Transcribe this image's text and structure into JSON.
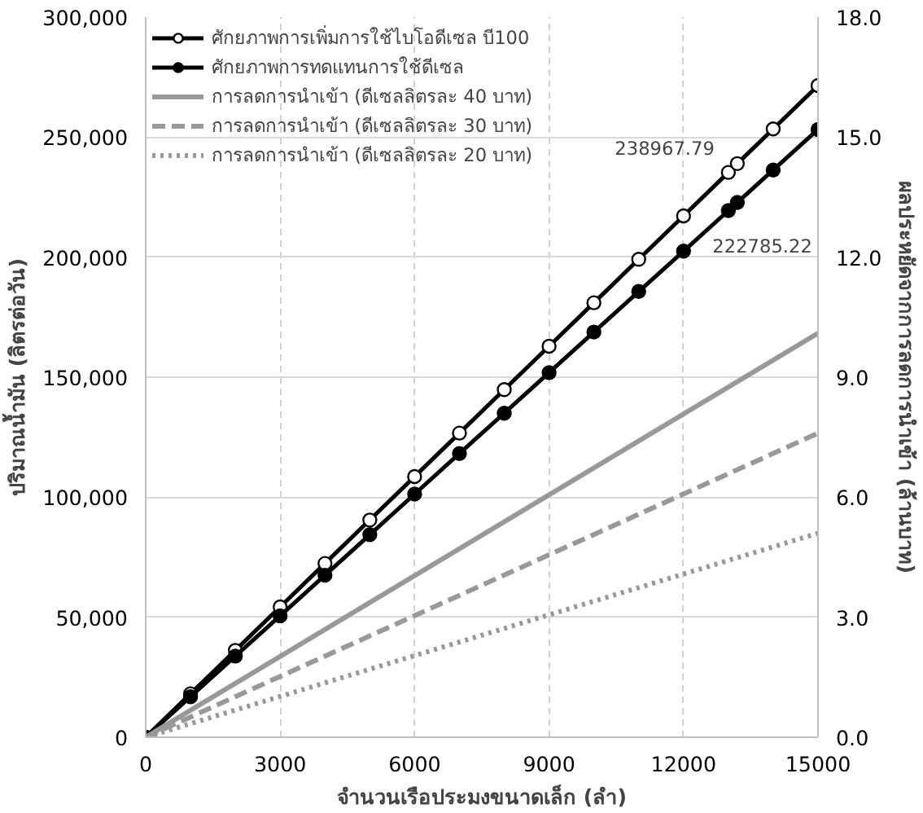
{
  "chart_data": {
    "type": "line",
    "xlabel": "จำนวนเรือประมงขนาดเล็ก (ลำ)",
    "ylabel": "ปริมาณน้ำมัน (ลิตรต่อวัน)",
    "y2label": "ผลประหยัดจากการลดการนำเข้า (ล้านบาท)",
    "xlim": [
      0,
      15000
    ],
    "xticks": [
      0,
      3000,
      6000,
      9000,
      12000,
      15000
    ],
    "ylim": [
      0,
      300000
    ],
    "yticks": [
      {
        "value": 0,
        "label": "0"
      },
      {
        "value": 50000,
        "label": "50,000"
      },
      {
        "value": 100000,
        "label": "100,000"
      },
      {
        "value": 150000,
        "label": "150,000"
      },
      {
        "value": 200000,
        "label": "200,000"
      },
      {
        "value": 250000,
        "label": "250,000"
      },
      {
        "value": 300000,
        "label": "300,000"
      }
    ],
    "y2lim": [
      0,
      18
    ],
    "y2ticks": [
      {
        "value": 0,
        "label": "0.0"
      },
      {
        "value": 3,
        "label": "3.0"
      },
      {
        "value": 6,
        "label": "6.0"
      },
      {
        "value": 9,
        "label": "9.0"
      },
      {
        "value": 12,
        "label": "12.0"
      },
      {
        "value": 15,
        "label": "15.0"
      },
      {
        "value": 18,
        "label": "18.0"
      }
    ],
    "grid": true,
    "legend": "top left",
    "series": [
      {
        "name": "ศักยภาพการเพิ่มการใช้ไบโอดีเซล บี100",
        "color": "#000000",
        "marker": "circle",
        "line_style": "solid",
        "x": [
          0,
          1000,
          2000,
          3000,
          4000,
          5000,
          6000,
          7000,
          8000,
          9000,
          10000,
          11000,
          12000,
          13000,
          13200,
          14000,
          15000
        ],
        "values": [
          0,
          18100,
          36200,
          54300,
          72400,
          90500,
          108600,
          126700,
          144800,
          162900,
          181000,
          199100,
          217200,
          235300,
          238967.79,
          253400,
          271500
        ]
      },
      {
        "name": "ศักยภาพการทดแทนการใช้ดีเซล",
        "color": "#000000",
        "marker": "circle",
        "line_style": "solid",
        "x": [
          0,
          1000,
          2000,
          3000,
          4000,
          5000,
          6000,
          7000,
          8000,
          9000,
          10000,
          11000,
          12000,
          13000,
          13200,
          14000,
          15000
        ],
        "values": [
          0,
          16900,
          33800,
          50600,
          67500,
          84400,
          101300,
          118200,
          135000,
          151900,
          168800,
          185700,
          202500,
          219400,
          222785.22,
          236300,
          253200
        ]
      },
      {
        "name": "การลดการนำเข้า (ดีเซลลิตรละ 40 บาท)",
        "color": "#999999",
        "marker": "none",
        "line_style": "solid",
        "axis": "y2",
        "x": [
          0,
          15000
        ],
        "values": [
          0,
          10.1
        ]
      },
      {
        "name": "การลดการนำเข้า (ดีเซลลิตรละ 30 บาท)",
        "color": "#999999",
        "marker": "none",
        "line_style": "dashed",
        "axis": "y2",
        "x": [
          0,
          15000
        ],
        "values": [
          0,
          7.6
        ]
      },
      {
        "name": "การลดการนำเข้า (ดีเซลลิตรละ 20 บาท)",
        "color": "#999999",
        "marker": "none",
        "line_style": "dotted",
        "axis": "y2",
        "x": [
          0,
          15000
        ],
        "values": [
          0,
          5.1
        ]
      }
    ],
    "annotations": [
      {
        "text": "238967.79",
        "x": 13200,
        "y": 238967.79
      },
      {
        "text": "222785.22",
        "x": 13200,
        "y": 222785.22
      }
    ]
  }
}
